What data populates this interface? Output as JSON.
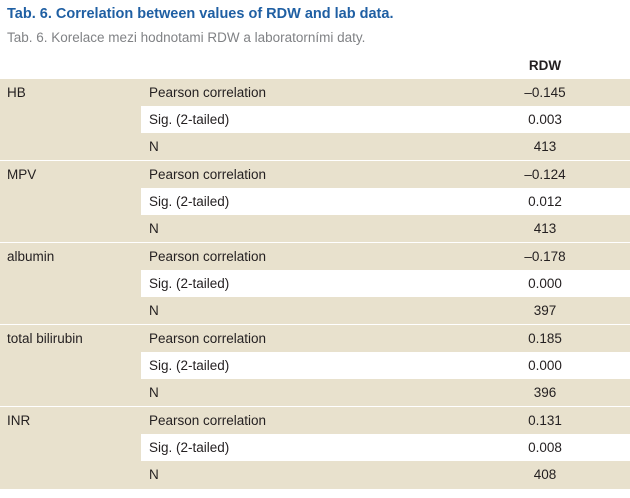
{
  "title": "Tab. 6. Correlation between values of RDW and lab data.",
  "subtitle": "Tab. 6. Korelace mezi hodnotami RDW a laboratorními daty.",
  "column_header": "RDW",
  "groups": [
    {
      "variable": "HB",
      "rows": [
        {
          "stat": "Pearson correlation",
          "value": "–0.145"
        },
        {
          "stat": "Sig. (2-tailed)",
          "value": "0.003"
        },
        {
          "stat": "N",
          "value": "413"
        }
      ]
    },
    {
      "variable": "MPV",
      "rows": [
        {
          "stat": "Pearson correlation",
          "value": "–0.124"
        },
        {
          "stat": "Sig. (2-tailed)",
          "value": "0.012"
        },
        {
          "stat": "N",
          "value": "413"
        }
      ]
    },
    {
      "variable": "albumin",
      "rows": [
        {
          "stat": "Pearson correlation",
          "value": "–0.178"
        },
        {
          "stat": "Sig. (2-tailed)",
          "value": "0.000"
        },
        {
          "stat": "N",
          "value": "397"
        }
      ]
    },
    {
      "variable": "total bilirubin",
      "rows": [
        {
          "stat": "Pearson correlation",
          "value": "0.185"
        },
        {
          "stat": "Sig. (2-tailed)",
          "value": "0.000"
        },
        {
          "stat": "N",
          "value": "396"
        }
      ]
    },
    {
      "variable": "INR",
      "rows": [
        {
          "stat": "Pearson correlation",
          "value": "0.131"
        },
        {
          "stat": "Sig. (2-tailed)",
          "value": "0.008"
        },
        {
          "stat": "N",
          "value": "408"
        }
      ]
    }
  ],
  "colors": {
    "title": "#1f5fa3",
    "subtitle": "#808285",
    "shade": "#e8e1cd"
  }
}
